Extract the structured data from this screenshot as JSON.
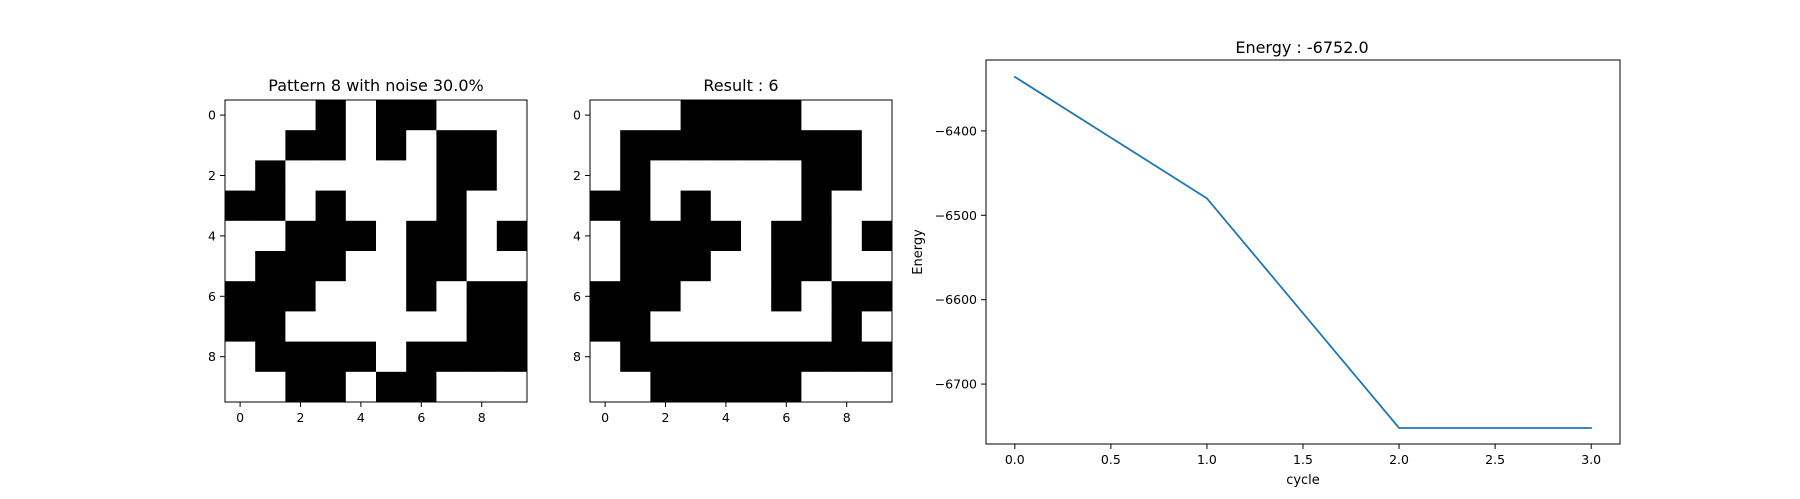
{
  "chart_data": [
    {
      "type": "heatmap",
      "title": "Pattern 8 with noise 30.0%",
      "xticks": [
        "0",
        "2",
        "4",
        "6",
        "8"
      ],
      "yticks": [
        "0",
        "2",
        "4",
        "6",
        "8"
      ],
      "colors": {
        "1": "#000000",
        "0": "#ffffff"
      },
      "grid": [
        [
          0,
          0,
          0,
          1,
          0,
          1,
          1,
          0,
          0,
          0
        ],
        [
          0,
          0,
          1,
          1,
          0,
          1,
          0,
          1,
          1,
          0
        ],
        [
          0,
          1,
          0,
          0,
          0,
          0,
          0,
          1,
          1,
          0
        ],
        [
          1,
          1,
          0,
          1,
          0,
          0,
          0,
          1,
          0,
          0
        ],
        [
          0,
          0,
          1,
          1,
          1,
          0,
          1,
          1,
          0,
          1
        ],
        [
          0,
          1,
          1,
          1,
          0,
          0,
          1,
          1,
          0,
          0
        ],
        [
          1,
          1,
          1,
          0,
          0,
          0,
          1,
          0,
          1,
          1
        ],
        [
          1,
          1,
          0,
          0,
          0,
          0,
          0,
          0,
          1,
          1
        ],
        [
          0,
          1,
          1,
          1,
          1,
          0,
          1,
          1,
          1,
          1
        ],
        [
          0,
          0,
          1,
          1,
          0,
          1,
          1,
          0,
          0,
          0
        ]
      ]
    },
    {
      "type": "heatmap",
      "title": "Result : 6",
      "xticks": [
        "0",
        "2",
        "4",
        "6",
        "8"
      ],
      "yticks": [
        "0",
        "2",
        "4",
        "6",
        "8"
      ],
      "colors": {
        "1": "#000000",
        "0": "#ffffff"
      },
      "grid": [
        [
          0,
          0,
          0,
          1,
          1,
          1,
          1,
          0,
          0,
          0
        ],
        [
          0,
          1,
          1,
          1,
          1,
          1,
          1,
          1,
          1,
          0
        ],
        [
          0,
          1,
          0,
          0,
          0,
          0,
          0,
          1,
          1,
          0
        ],
        [
          1,
          1,
          0,
          1,
          0,
          0,
          0,
          1,
          0,
          0
        ],
        [
          0,
          1,
          1,
          1,
          1,
          0,
          1,
          1,
          0,
          1
        ],
        [
          0,
          1,
          1,
          1,
          0,
          0,
          1,
          1,
          0,
          0
        ],
        [
          1,
          1,
          1,
          0,
          0,
          0,
          1,
          0,
          1,
          1
        ],
        [
          1,
          1,
          0,
          0,
          0,
          0,
          0,
          0,
          1,
          0
        ],
        [
          0,
          1,
          1,
          1,
          1,
          1,
          1,
          1,
          1,
          1
        ],
        [
          0,
          0,
          1,
          1,
          1,
          1,
          1,
          0,
          0,
          0
        ]
      ]
    },
    {
      "type": "line",
      "title": "Energy : -6752.0",
      "xlabel": "cycle",
      "ylabel": "Energy",
      "x": [
        0.0,
        1.0,
        2.0,
        3.0
      ],
      "series": [
        {
          "values": [
            -6336,
            -6480,
            -6752,
            -6752
          ],
          "color": "#1f77b4"
        }
      ],
      "xlim": [
        -0.15,
        3.15
      ],
      "ylim": [
        -6771,
        -6316
      ],
      "xticks": [
        0.0,
        0.5,
        1.0,
        1.5,
        2.0,
        2.5,
        3.0
      ],
      "xtick_labels": [
        "0.0",
        "0.5",
        "1.0",
        "1.5",
        "2.0",
        "2.5",
        "3.0"
      ],
      "yticks": [
        -6400,
        -6500,
        -6600,
        -6700
      ],
      "ytick_labels": [
        "−6400",
        "−6500",
        "−6600",
        "−6700"
      ],
      "grid": false
    }
  ]
}
